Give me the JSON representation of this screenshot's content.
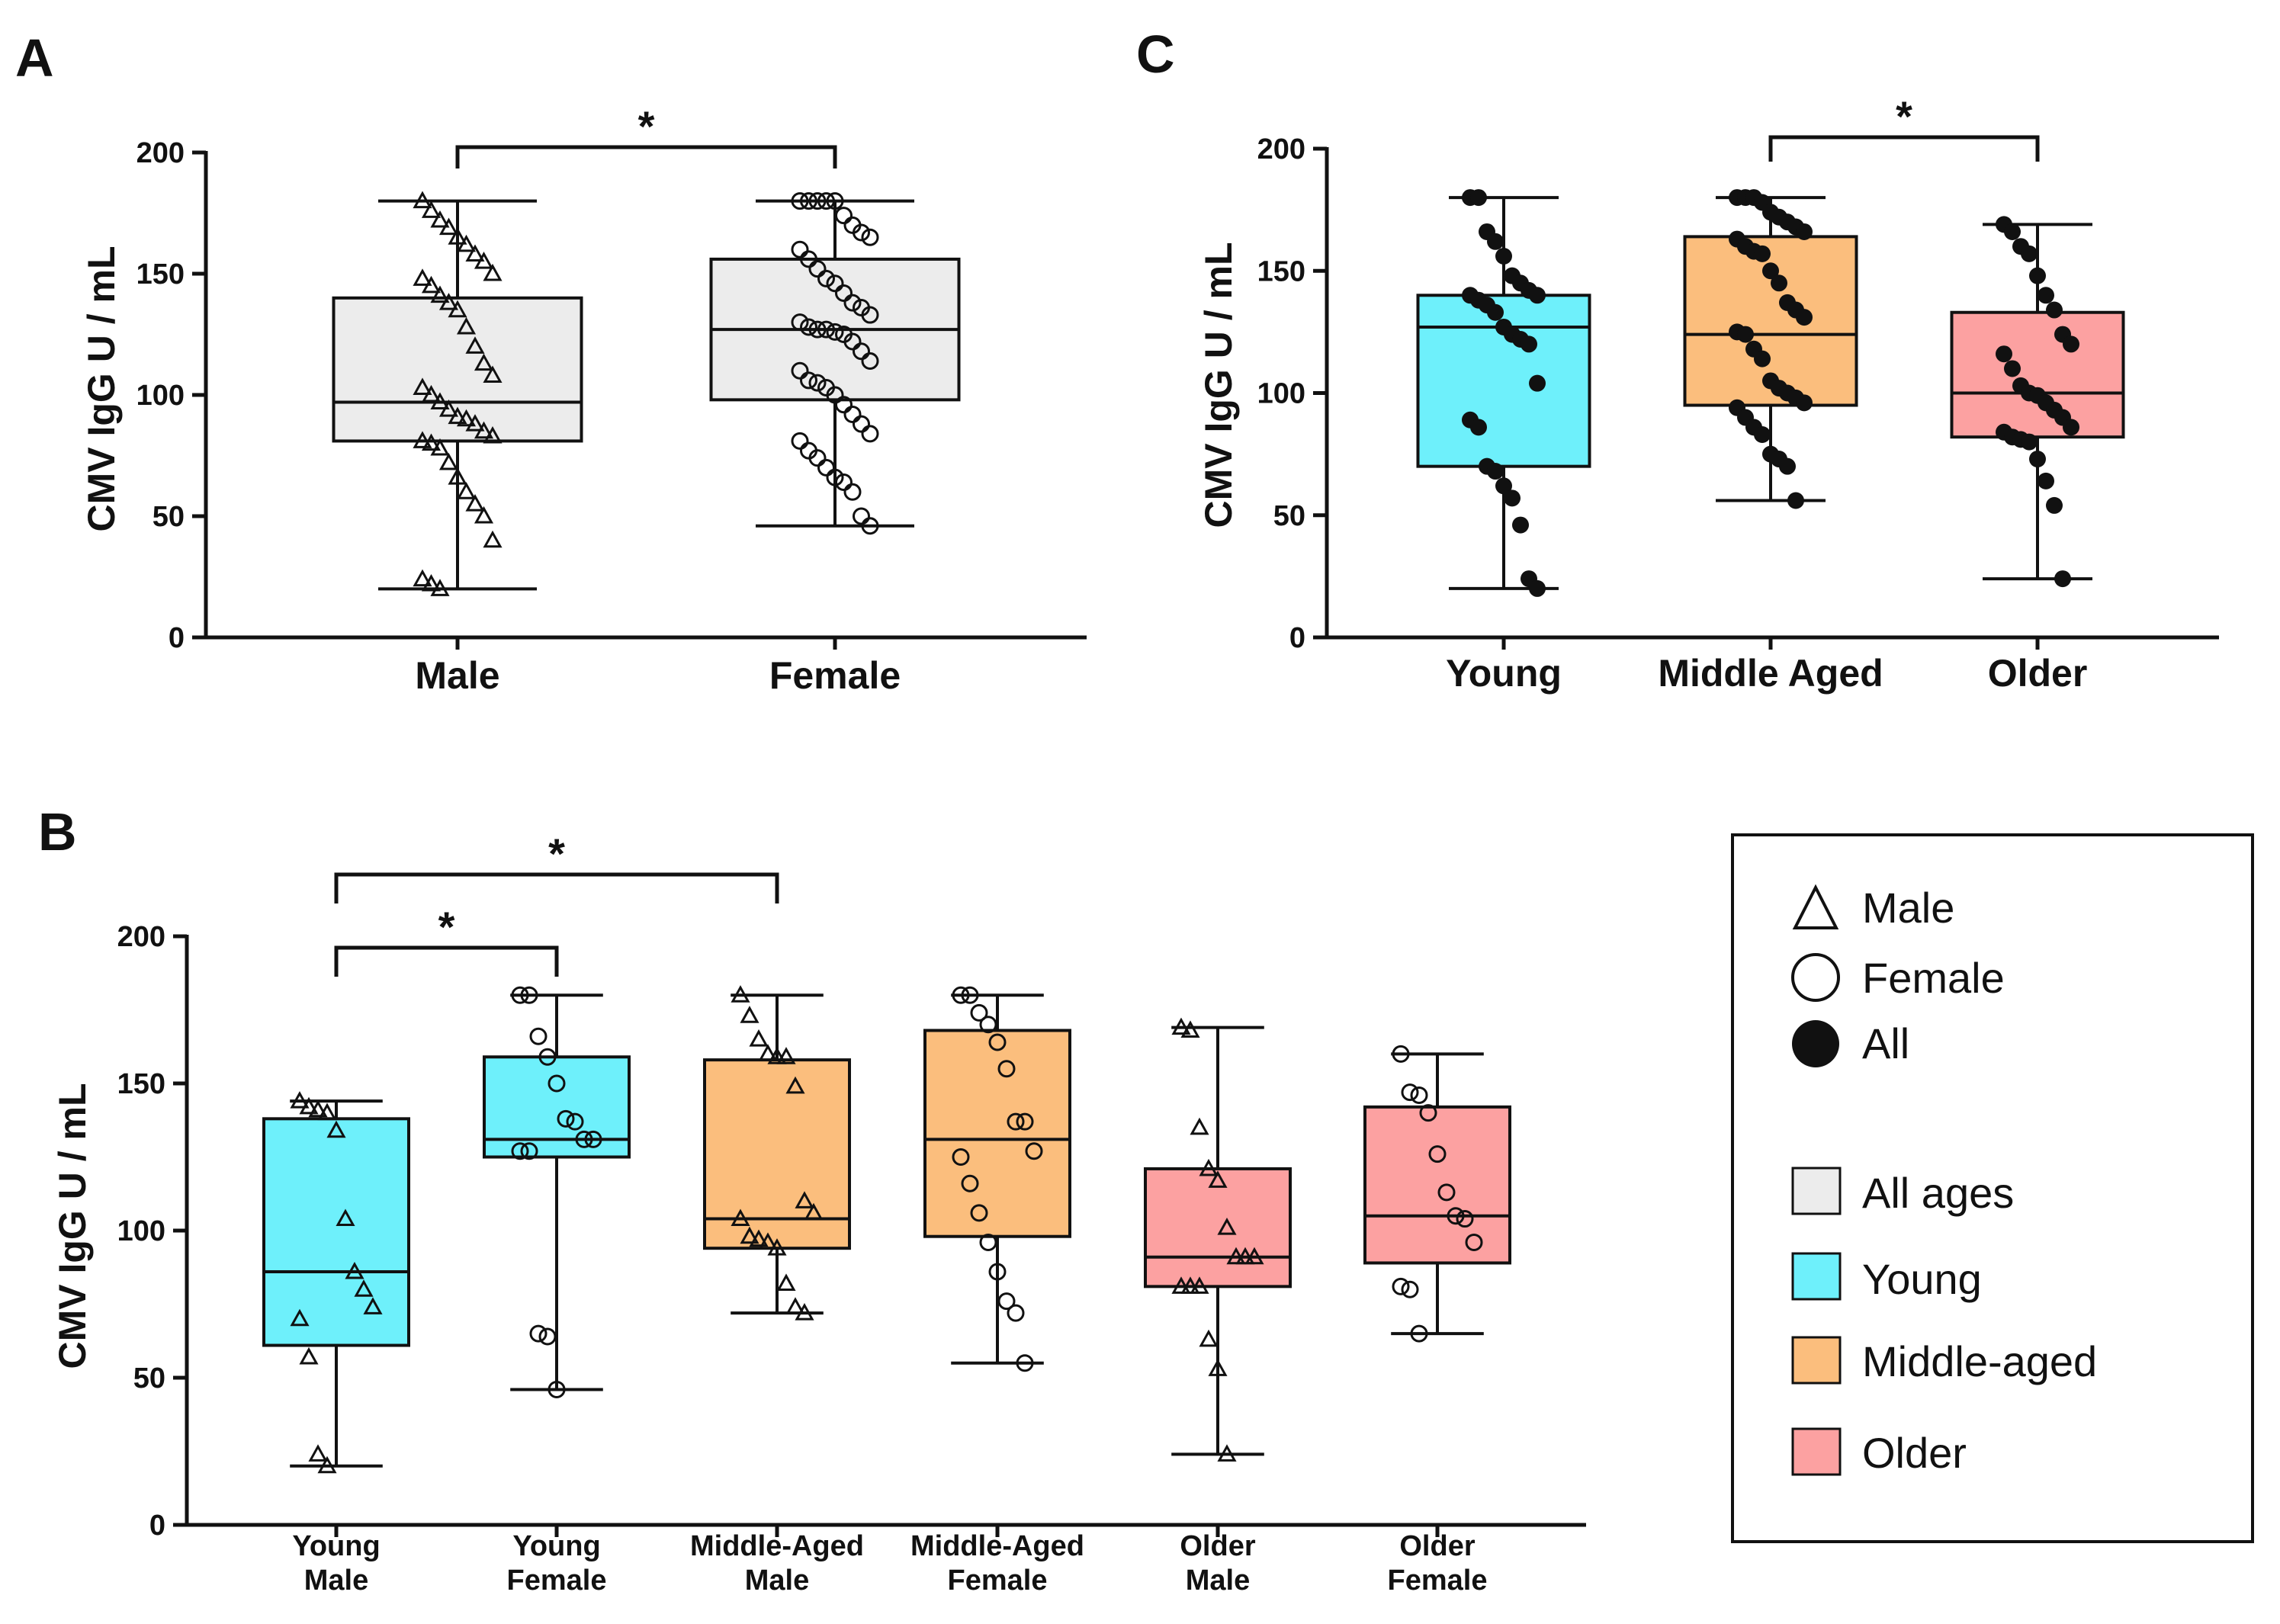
{
  "panels": {
    "a": "A",
    "b": "B",
    "c": "C"
  },
  "colors": {
    "all_ages": "#ececec",
    "young": "#6ef0fb",
    "middle_aged": "#fbbe7d",
    "older": "#fca1a1",
    "ink": "#111111"
  },
  "legend": {
    "male": "Male",
    "female": "Female",
    "all": "All",
    "all_ages": "All ages",
    "young": "Young",
    "middle_aged": "Middle-aged",
    "older": "Older"
  },
  "chart_data": [
    {
      "id": "A",
      "type": "box",
      "title": "",
      "ylabel": "CMV IgG U / mL",
      "ylim": [
        0,
        200
      ],
      "yticks": [
        0,
        50,
        100,
        150,
        200
      ],
      "categories": [
        "Male",
        "Female"
      ],
      "boxes": [
        {
          "category": "Male",
          "color": "all_ages",
          "marker": "triangle",
          "min": 20,
          "q1": 81,
          "median": 97,
          "q3": 140,
          "max": 180,
          "points": [
            180,
            176,
            172,
            169,
            165,
            162,
            158,
            155,
            150,
            148,
            145,
            141,
            138,
            135,
            128,
            120,
            113,
            108,
            103,
            100,
            97,
            94,
            91,
            90,
            88,
            85,
            83,
            81,
            80,
            78,
            72,
            66,
            60,
            55,
            50,
            40,
            24,
            22,
            20
          ]
        },
        {
          "category": "Female",
          "color": "all_ages",
          "marker": "circle",
          "min": 46,
          "q1": 98,
          "median": 127,
          "q3": 156,
          "max": 180,
          "points": [
            180,
            180,
            180,
            180,
            180,
            174,
            170,
            167,
            165,
            160,
            156,
            152,
            148,
            146,
            142,
            138,
            136,
            133,
            130,
            128,
            127,
            127,
            126,
            125,
            122,
            118,
            114,
            110,
            106,
            105,
            103,
            100,
            96,
            92,
            88,
            84,
            81,
            77,
            74,
            70,
            66,
            64,
            60,
            50,
            46
          ]
        }
      ],
      "comparisons": [
        {
          "from": "Male",
          "to": "Female",
          "label": "*"
        }
      ]
    },
    {
      "id": "B",
      "type": "box",
      "title": "",
      "ylabel": "CMV IgG U / mL",
      "ylim": [
        0,
        200
      ],
      "yticks": [
        0,
        50,
        100,
        150,
        200
      ],
      "categories": [
        "Young Male",
        "Young Female",
        "Middle-Aged Male",
        "Middle-Aged Female",
        "Older Male",
        "Older Female"
      ],
      "category_lines": [
        [
          "Young",
          "Male"
        ],
        [
          "Young",
          "Female"
        ],
        [
          "Middle-Aged",
          "Male"
        ],
        [
          "Middle-Aged",
          "Female"
        ],
        [
          "Older",
          "Male"
        ],
        [
          "Older",
          "Female"
        ]
      ],
      "boxes": [
        {
          "category": "Young Male",
          "color": "young",
          "marker": "triangle",
          "min": 20,
          "q1": 61,
          "median": 86,
          "q3": 138,
          "max": 144,
          "points": [
            144,
            142,
            141,
            140,
            134,
            104,
            86,
            80,
            74,
            70,
            57,
            24,
            20
          ]
        },
        {
          "category": "Young Female",
          "color": "young",
          "marker": "circle",
          "min": 46,
          "q1": 125,
          "median": 131,
          "q3": 159,
          "max": 180,
          "points": [
            180,
            180,
            166,
            159,
            150,
            138,
            137,
            131,
            131,
            127,
            127,
            65,
            64,
            46
          ]
        },
        {
          "category": "Middle-Aged Male",
          "color": "middle_aged",
          "marker": "triangle",
          "min": 72,
          "q1": 94,
          "median": 104,
          "q3": 158,
          "max": 180,
          "points": [
            180,
            173,
            165,
            160,
            159,
            159,
            149,
            110,
            106,
            104,
            98,
            97,
            96,
            94,
            82,
            74,
            72
          ]
        },
        {
          "category": "Middle-Aged Female",
          "color": "middle_aged",
          "marker": "circle",
          "min": 55,
          "q1": 98,
          "median": 131,
          "q3": 168,
          "max": 180,
          "points": [
            180,
            180,
            174,
            170,
            164,
            155,
            137,
            137,
            127,
            125,
            116,
            106,
            96,
            86,
            76,
            72,
            55
          ]
        },
        {
          "category": "Older Male",
          "color": "older",
          "marker": "triangle",
          "min": 24,
          "q1": 81,
          "median": 91,
          "q3": 121,
          "max": 169,
          "points": [
            169,
            168,
            135,
            121,
            117,
            101,
            91,
            91,
            91,
            81,
            81,
            81,
            63,
            53,
            24
          ]
        },
        {
          "category": "Older Female",
          "color": "older",
          "marker": "circle",
          "min": 65,
          "q1": 89,
          "median": 105,
          "q3": 142,
          "max": 160,
          "points": [
            160,
            147,
            146,
            140,
            126,
            113,
            105,
            104,
            96,
            81,
            80,
            65
          ]
        }
      ],
      "comparisons": [
        {
          "from": "Young Male",
          "to": "Young Female",
          "label": "*"
        },
        {
          "from": "Young Male",
          "to": "Middle-Aged Male",
          "label": "*"
        }
      ]
    },
    {
      "id": "C",
      "type": "box",
      "title": "",
      "ylabel": "CMV IgG U / mL",
      "ylim": [
        0,
        200
      ],
      "yticks": [
        0,
        50,
        100,
        150,
        200
      ],
      "categories": [
        "Young",
        "Middle Aged",
        "Older"
      ],
      "boxes": [
        {
          "category": "Young",
          "color": "young",
          "marker": "dot",
          "min": 20,
          "q1": 70,
          "median": 127,
          "q3": 140,
          "max": 180,
          "points": [
            180,
            180,
            166,
            162,
            156,
            148,
            145,
            142,
            140,
            140,
            138,
            136,
            133,
            127,
            124,
            122,
            120,
            104,
            89,
            86,
            70,
            68,
            62,
            57,
            46,
            24,
            20
          ]
        },
        {
          "category": "Middle Aged",
          "color": "middle_aged",
          "marker": "dot",
          "min": 56,
          "q1": 95,
          "median": 124,
          "q3": 164,
          "max": 180,
          "points": [
            180,
            180,
            180,
            178,
            174,
            172,
            170,
            168,
            166,
            163,
            160,
            158,
            157,
            150,
            145,
            137,
            134,
            131,
            125,
            124,
            118,
            114,
            105,
            102,
            100,
            98,
            96,
            94,
            90,
            86,
            83,
            75,
            73,
            70,
            56
          ]
        },
        {
          "category": "Older",
          "color": "older",
          "marker": "dot",
          "min": 24,
          "q1": 82,
          "median": 100,
          "q3": 133,
          "max": 169,
          "points": [
            169,
            166,
            160,
            157,
            148,
            140,
            134,
            124,
            120,
            116,
            110,
            103,
            100,
            99,
            96,
            93,
            90,
            86,
            84,
            82,
            81,
            80,
            73,
            64,
            54,
            24
          ]
        }
      ],
      "comparisons": [
        {
          "from": "Middle Aged",
          "to": "Older",
          "label": "*"
        }
      ]
    }
  ]
}
